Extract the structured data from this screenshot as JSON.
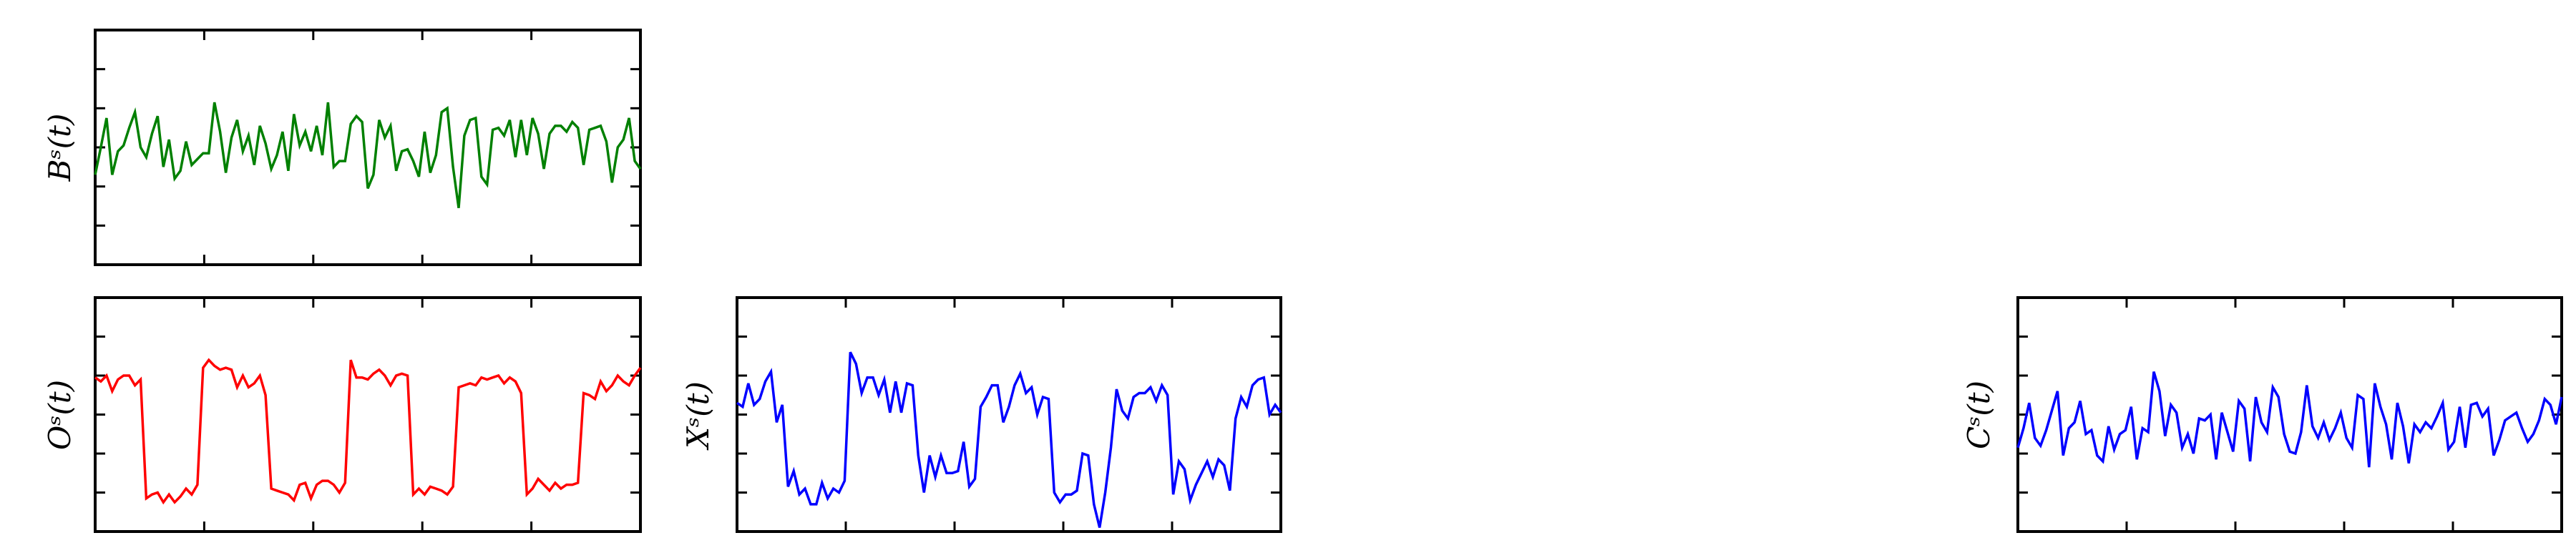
{
  "chart_data": [
    {
      "type": "line",
      "ylabel": "B^s(t)",
      "ylabel_text": "Bˢ(t)",
      "color": "#008000",
      "xlim": [
        0,
        150
      ],
      "ylim": [
        -3,
        3
      ],
      "tick_labels_shown": false,
      "grid": false,
      "y": [
        -0.7,
        0.0,
        0.75,
        -0.7,
        -0.1,
        0.05,
        0.5,
        0.9,
        0.0,
        -0.25,
        0.35,
        0.8,
        -0.5,
        0.2,
        -0.8,
        -0.6,
        0.15,
        -0.45,
        -0.3,
        -0.15,
        -0.15,
        1.15,
        0.4,
        -0.65,
        0.25,
        0.7,
        -0.1,
        0.3,
        -0.45,
        0.55,
        0.1,
        -0.55,
        -0.2,
        0.4,
        -0.6,
        0.85,
        0.05,
        0.4,
        -0.1,
        0.55,
        -0.2,
        1.15,
        -0.5,
        -0.35,
        -0.35,
        0.6,
        0.8,
        0.65,
        -1.05,
        -0.7,
        0.7,
        0.25,
        0.55,
        -0.6,
        -0.1,
        -0.05,
        -0.35,
        -0.75,
        0.4,
        -0.65,
        -0.2,
        0.9,
        1.0,
        -0.5,
        -1.55,
        0.3,
        0.7,
        0.75,
        -0.75,
        -0.95,
        0.45,
        0.5,
        0.3,
        0.7,
        -0.25,
        0.7,
        -0.2,
        0.75,
        0.35,
        -0.55,
        0.35,
        0.55,
        0.55,
        0.4,
        0.65,
        0.5,
        -0.45,
        0.45,
        0.5,
        0.55,
        0.15,
        -0.9,
        0.0,
        0.2,
        0.75,
        -0.35,
        -0.55
      ]
    },
    {
      "type": "line",
      "ylabel": "O^s(t)",
      "ylabel_text": "Oˢ(t)",
      "color": "#ff0000",
      "xlim": [
        0,
        150
      ],
      "ylim": [
        -3,
        3
      ],
      "tick_labels_shown": false,
      "grid": false,
      "y": [
        0.95,
        0.85,
        1.0,
        0.6,
        0.9,
        1.0,
        1.0,
        0.75,
        0.9,
        -2.15,
        -2.05,
        -2.0,
        -2.25,
        -2.05,
        -2.25,
        -2.1,
        -1.9,
        -2.05,
        -1.8,
        1.2,
        1.4,
        1.25,
        1.15,
        1.2,
        1.15,
        0.7,
        1.0,
        0.7,
        0.8,
        1.0,
        0.5,
        -1.9,
        -1.95,
        -2.0,
        -2.05,
        -2.2,
        -1.8,
        -1.75,
        -2.15,
        -1.8,
        -1.7,
        -1.7,
        -1.8,
        -2.0,
        -1.75,
        1.4,
        0.95,
        0.95,
        0.9,
        1.05,
        1.15,
        1.0,
        0.75,
        1.0,
        1.05,
        1.0,
        -2.05,
        -1.9,
        -2.05,
        -1.85,
        -1.9,
        -1.95,
        -2.05,
        -1.85,
        0.7,
        0.75,
        0.8,
        0.75,
        0.95,
        0.9,
        0.95,
        1.0,
        0.8,
        0.95,
        0.85,
        0.55,
        -2.05,
        -1.9,
        -1.65,
        -1.8,
        -1.95,
        -1.75,
        -1.9,
        -1.8,
        -1.8,
        -1.75,
        0.55,
        0.5,
        0.4,
        0.85,
        0.6,
        0.75,
        1.0,
        0.85,
        0.75,
        1.0,
        1.2
      ]
    },
    {
      "type": "line",
      "ylabel": "X^s(t)",
      "ylabel_text": "Xˢ(t)",
      "color": "#0000ff",
      "xlim": [
        0,
        150
      ],
      "ylim": [
        -3,
        3
      ],
      "tick_labels_shown": false,
      "grid": false,
      "y": [
        0.3,
        0.2,
        0.8,
        0.25,
        0.4,
        0.85,
        1.1,
        -0.2,
        0.25,
        -1.85,
        -1.45,
        -2.05,
        -1.9,
        -2.3,
        -2.3,
        -1.75,
        -2.15,
        -1.9,
        -2.0,
        -1.7,
        1.6,
        1.3,
        0.55,
        0.95,
        0.95,
        0.5,
        0.9,
        0.05,
        0.85,
        0.05,
        0.8,
        0.75,
        -1.05,
        -2.0,
        -1.05,
        -1.6,
        -1.05,
        -1.5,
        -1.5,
        -1.45,
        -0.7,
        -1.85,
        -1.65,
        0.2,
        0.45,
        0.75,
        0.75,
        -0.2,
        0.2,
        0.75,
        1.05,
        0.55,
        0.7,
        0.0,
        0.45,
        0.4,
        -2.0,
        -2.25,
        -2.05,
        -2.05,
        -1.95,
        -1.0,
        -1.05,
        -2.3,
        -2.9,
        -2.0,
        -0.85,
        0.65,
        0.1,
        -0.1,
        0.45,
        0.55,
        0.55,
        0.7,
        0.35,
        0.75,
        0.5,
        -2.05,
        -1.2,
        -1.4,
        -2.2,
        -1.8,
        -1.5,
        -1.2,
        -1.6,
        -1.15,
        -1.3,
        -1.95,
        -0.1,
        0.45,
        0.2,
        0.75,
        0.9,
        0.95,
        0.0,
        0.25,
        0.05
      ]
    },
    {
      "type": "line",
      "ylabel": "C^s(t)",
      "ylabel_text": "Cˢ(t)",
      "color": "#0000ff",
      "xlim": [
        0,
        150
      ],
      "ylim": [
        -3,
        3
      ],
      "tick_labels_shown": false,
      "grid": false,
      "y": [
        -0.85,
        -0.35,
        0.3,
        -0.6,
        -0.8,
        -0.4,
        0.1,
        0.6,
        -1.05,
        -0.35,
        -0.2,
        0.35,
        -0.5,
        -0.4,
        -1.05,
        -1.2,
        -0.3,
        -0.9,
        -0.5,
        -0.4,
        0.2,
        -1.15,
        -0.35,
        -0.45,
        1.1,
        0.6,
        -0.55,
        0.25,
        0.05,
        -0.85,
        -0.5,
        -1.0,
        -0.1,
        -0.15,
        0.0,
        -1.15,
        0.05,
        -0.45,
        -0.95,
        0.35,
        0.15,
        -1.2,
        0.45,
        -0.2,
        -0.45,
        0.7,
        0.45,
        -0.5,
        -0.95,
        -1.0,
        -0.45,
        0.75,
        -0.3,
        -0.6,
        -0.2,
        -0.65,
        -0.35,
        0.05,
        -0.6,
        -0.85,
        0.5,
        0.4,
        -1.35,
        0.8,
        0.2,
        -0.25,
        -1.15,
        0.3,
        -0.3,
        -1.25,
        -0.25,
        -0.45,
        -0.2,
        -0.35,
        -0.05,
        0.3,
        -0.9,
        -0.7,
        0.2,
        -0.85,
        0.25,
        0.3,
        -0.05,
        0.15,
        -1.05,
        -0.65,
        -0.15,
        -0.05,
        0.05,
        -0.35,
        -0.7,
        -0.5,
        -0.15,
        0.4,
        0.25,
        -0.25,
        0.45
      ]
    }
  ]
}
